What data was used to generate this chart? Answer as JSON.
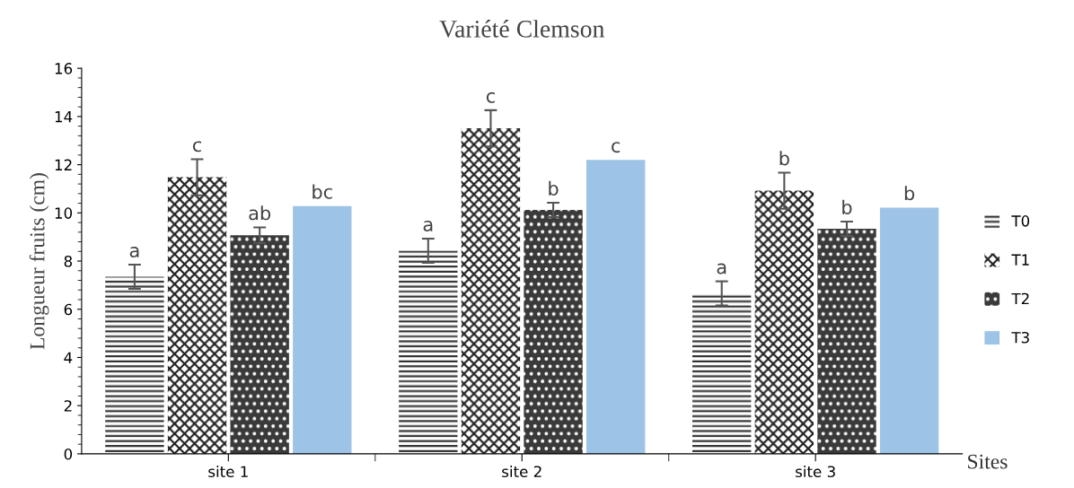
{
  "chart_data": {
    "type": "bar",
    "title": "Variété Clemson",
    "xlabel": "Sites",
    "ylabel": "Longueur fruits (cm)",
    "categories": [
      "site 1",
      "site 2",
      "site 3"
    ],
    "series": [
      {
        "name": "T0",
        "color": "#333333",
        "values": [
          7.35,
          8.43,
          6.66
        ],
        "errors": [
          0.5,
          0.5,
          0.5
        ],
        "value_labels": [
          "a",
          "a",
          "a"
        ]
      },
      {
        "name": "T1",
        "color": "#222222",
        "values": [
          11.48,
          13.51,
          10.92
        ],
        "errors": [
          0.75,
          0.75,
          0.75
        ],
        "value_labels": [
          "c",
          "c",
          "b"
        ]
      },
      {
        "name": "T2",
        "color": "#3a3a3a",
        "values": [
          9.07,
          10.12,
          9.34
        ],
        "errors": [
          0.33,
          0.3,
          0.3
        ],
        "value_labels": [
          "ab",
          "b",
          "b"
        ]
      },
      {
        "name": "T3",
        "color": "#9dc3e6",
        "values": [
          10.28,
          12.2,
          10.22
        ],
        "value_labels": [
          "bc",
          "c",
          "b"
        ]
      }
    ],
    "ylim": [
      0,
      16
    ],
    "yticks": [
      0,
      2,
      4,
      6,
      8,
      10,
      12,
      14,
      16
    ],
    "legend": "right",
    "grid": false
  }
}
